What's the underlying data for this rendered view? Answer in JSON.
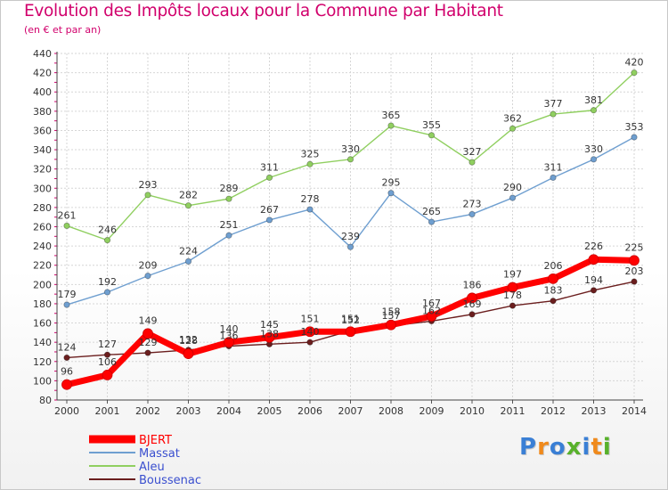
{
  "chart_data": {
    "type": "line",
    "title": "Evolution des Impôts locaux pour la Commune par Habitant",
    "subtitle": "(en € et par an)",
    "x": [
      "2000",
      "2001",
      "2002",
      "2003",
      "2004",
      "2005",
      "2006",
      "2007",
      "2008",
      "2009",
      "2010",
      "2011",
      "2012",
      "2013",
      "2014"
    ],
    "ylim": [
      80,
      440
    ],
    "yticks": [
      80,
      100,
      120,
      140,
      160,
      180,
      200,
      220,
      240,
      260,
      280,
      300,
      320,
      340,
      360,
      380,
      400,
      420,
      440
    ],
    "grid": true,
    "legend_position": "bottom-left",
    "series": [
      {
        "name": "BJERT",
        "color": "#ff0000",
        "values": [
          96,
          106,
          149,
          128,
          140,
          145,
          151,
          151,
          158,
          167,
          186,
          197,
          206,
          226,
          225
        ]
      },
      {
        "name": "Massat",
        "color": "#6f9fd0",
        "values": [
          179,
          192,
          209,
          224,
          251,
          267,
          278,
          239,
          295,
          265,
          273,
          290,
          311,
          330,
          353
        ]
      },
      {
        "name": "Aleu",
        "color": "#90cf60",
        "values": [
          261,
          246,
          293,
          282,
          289,
          311,
          325,
          330,
          365,
          355,
          327,
          362,
          377,
          381,
          420
        ]
      },
      {
        "name": "Boussenac",
        "color": "#6b1e1e",
        "values": [
          124,
          127,
          129,
          132,
          136,
          138,
          140,
          152,
          157,
          162,
          169,
          178,
          183,
          194,
          203
        ]
      }
    ]
  },
  "logo": {
    "letters": [
      "P",
      "r",
      "o",
      "x",
      "i",
      "t",
      "i"
    ],
    "colors": [
      "#3a7fd5",
      "#f08a1c",
      "#3a7fd5",
      "#58b12b",
      "#3a7fd5",
      "#f08a1c",
      "#58b12b"
    ]
  }
}
